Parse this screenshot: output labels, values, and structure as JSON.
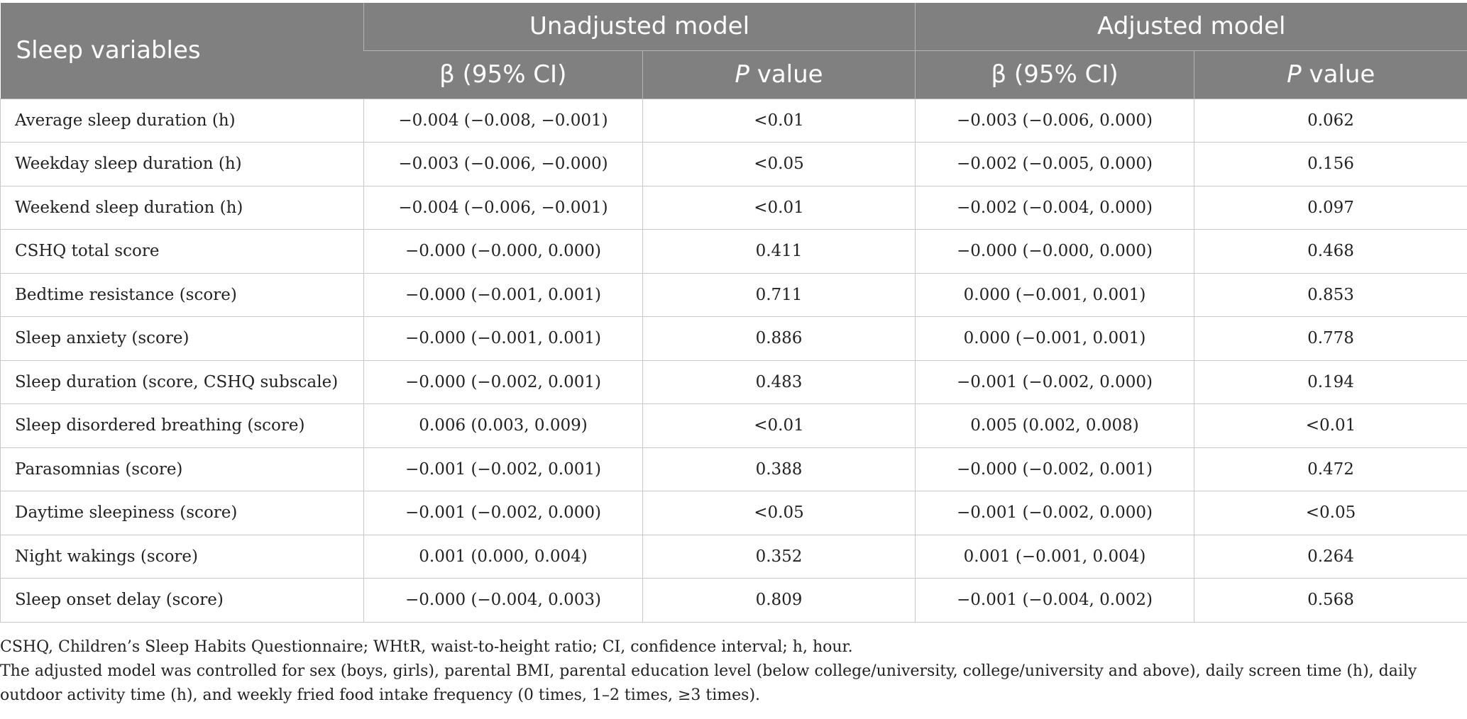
{
  "table": {
    "header": {
      "sleep_variables": "Sleep variables",
      "unadjusted_model": "Unadjusted model",
      "adjusted_model": "Adjusted model",
      "beta_ci": "β (95% CI)",
      "p_italic": "P",
      "p_rest": " value"
    },
    "rows": [
      {
        "variable": "Average sleep duration (h)",
        "unadj_beta": "−0.004 (−0.008, −0.001)",
        "unadj_p": "<0.01",
        "adj_beta": "−0.003 (−0.006, 0.000)",
        "adj_p": "0.062"
      },
      {
        "variable": "Weekday sleep duration (h)",
        "unadj_beta": "−0.003 (−0.006, −0.000)",
        "unadj_p": "<0.05",
        "adj_beta": "−0.002 (−0.005, 0.000)",
        "adj_p": "0.156"
      },
      {
        "variable": "Weekend sleep duration (h)",
        "unadj_beta": "−0.004 (−0.006, −0.001)",
        "unadj_p": "<0.01",
        "adj_beta": "−0.002 (−0.004, 0.000)",
        "adj_p": "0.097"
      },
      {
        "variable": "CSHQ total score",
        "unadj_beta": "−0.000 (−0.000, 0.000)",
        "unadj_p": "0.411",
        "adj_beta": "−0.000 (−0.000, 0.000)",
        "adj_p": "0.468"
      },
      {
        "variable": "Bedtime resistance (score)",
        "unadj_beta": "−0.000 (−0.001, 0.001)",
        "unadj_p": "0.711",
        "adj_beta": "0.000 (−0.001, 0.001)",
        "adj_p": "0.853"
      },
      {
        "variable": "Sleep anxiety (score)",
        "unadj_beta": "−0.000 (−0.001, 0.001)",
        "unadj_p": "0.886",
        "adj_beta": "0.000 (−0.001, 0.001)",
        "adj_p": "0.778"
      },
      {
        "variable": "Sleep duration (score, CSHQ subscale)",
        "unadj_beta": "−0.000 (−0.002, 0.001)",
        "unadj_p": "0.483",
        "adj_beta": "−0.001 (−0.002, 0.000)",
        "adj_p": "0.194"
      },
      {
        "variable": "Sleep disordered breathing (score)",
        "unadj_beta": "0.006 (0.003, 0.009)",
        "unadj_p": "<0.01",
        "adj_beta": "0.005 (0.002, 0.008)",
        "adj_p": "<0.01"
      },
      {
        "variable": "Parasomnias (score)",
        "unadj_beta": "−0.001 (−0.002, 0.001)",
        "unadj_p": "0.388",
        "adj_beta": "−0.000 (−0.002, 0.001)",
        "adj_p": "0.472"
      },
      {
        "variable": "Daytime sleepiness (score)",
        "unadj_beta": "−0.001 (−0.002, 0.000)",
        "unadj_p": "<0.05",
        "adj_beta": "−0.001 (−0.002, 0.000)",
        "adj_p": "<0.05"
      },
      {
        "variable": "Night wakings (score)",
        "unadj_beta": "0.001 (0.000, 0.004)",
        "unadj_p": "0.352",
        "adj_beta": "0.001 (−0.001, 0.004)",
        "adj_p": "0.264"
      },
      {
        "variable": "Sleep onset delay (score)",
        "unadj_beta": "−0.000 (−0.004, 0.003)",
        "unadj_p": "0.809",
        "adj_beta": "−0.001 (−0.004, 0.002)",
        "adj_p": "0.568"
      }
    ]
  },
  "footnotes": {
    "abbreviations": "CSHQ, Children’s Sleep Habits Questionnaire; WHtR, waist-to-height ratio; CI, confidence interval; h, hour.",
    "adjustment": "The adjusted model was controlled for sex (boys, girls), parental BMI, parental education level (below college/university, college/university and above), daily screen time (h), daily outdoor activity time (h), and weekly fried food intake frequency (0 times, 1–2 times, ≥3 times)."
  },
  "colors": {
    "header_background": "#808080",
    "header_text": "#ffffff",
    "body_text": "#222222",
    "grid_lines": "#c8c8c8"
  }
}
